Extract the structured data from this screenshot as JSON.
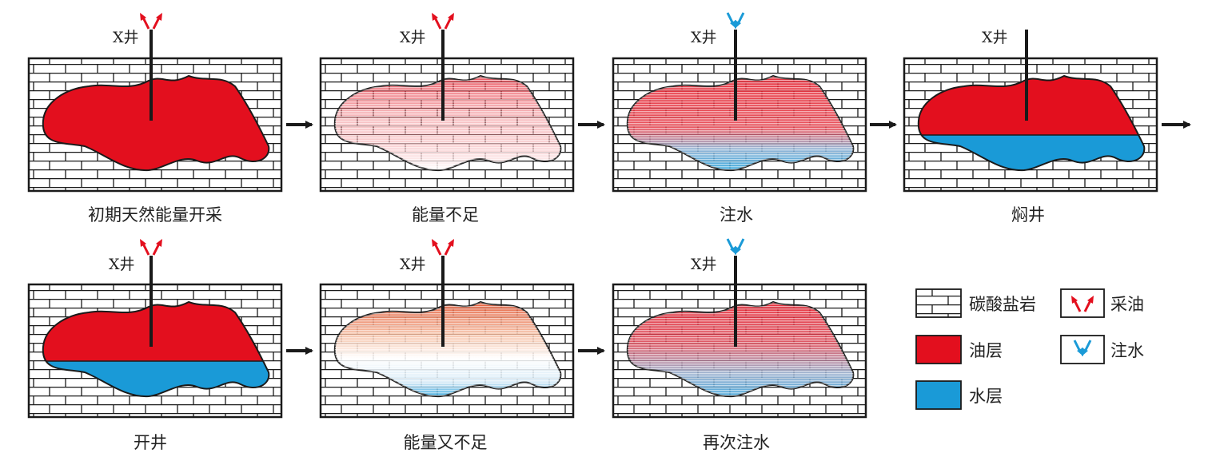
{
  "well_label": "X井",
  "panels": [
    {
      "label": "初期天然能量开采",
      "state": "oil-full",
      "arrow": "produce"
    },
    {
      "label": "能量不足",
      "state": "oil-faded",
      "arrow": "produce"
    },
    {
      "label": "注水",
      "state": "oil-water-gradient",
      "arrow": "inject"
    },
    {
      "label": "焖井",
      "state": "oil-water-separated",
      "arrow": "none"
    },
    {
      "label": "开井",
      "state": "oil-water-separated",
      "arrow": "produce"
    },
    {
      "label": "能量又不足",
      "state": "oil-water-faded",
      "arrow": "produce"
    },
    {
      "label": "再次注水",
      "state": "oil-water-gradient",
      "arrow": "inject"
    }
  ],
  "legend": {
    "carbonate": "碳酸盐岩",
    "oil_layer": "油层",
    "water_layer": "水层",
    "produce": "采油",
    "inject": "注水"
  },
  "colors": {
    "oil": "#e30f1e",
    "water": "#1a9ad7",
    "produce_arrow": "#e30f1e",
    "inject_arrow": "#1a9ad7",
    "outline": "#1a1a1a"
  }
}
